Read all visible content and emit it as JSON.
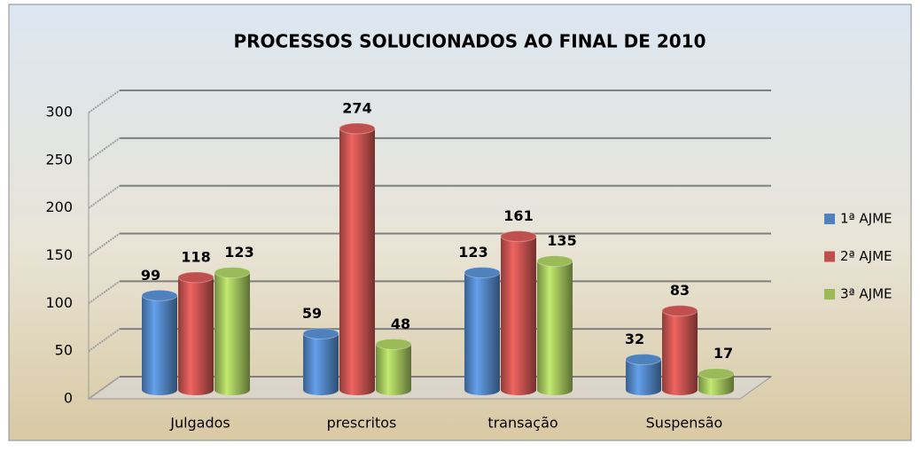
{
  "chart_data": {
    "type": "bar",
    "title": "PROCESSOS SOLUCIONADOS AO FINAL DE 2010",
    "categories": [
      "Julgados",
      "prescritos",
      "transação",
      "Suspensão"
    ],
    "series": [
      {
        "name": "1ª AJME",
        "color": "#4f81bd",
        "values": [
          99,
          59,
          123,
          32
        ]
      },
      {
        "name": "2ª AJME",
        "color": "#c0504d",
        "values": [
          118,
          274,
          161,
          83
        ]
      },
      {
        "name": "3ª AJME",
        "color": "#9bbb59",
        "values": [
          123,
          48,
          135,
          17
        ]
      }
    ],
    "ylim": [
      0,
      300
    ],
    "yticks": [
      0,
      50,
      100,
      150,
      200,
      250,
      300
    ],
    "grid": true,
    "legend": "right"
  }
}
